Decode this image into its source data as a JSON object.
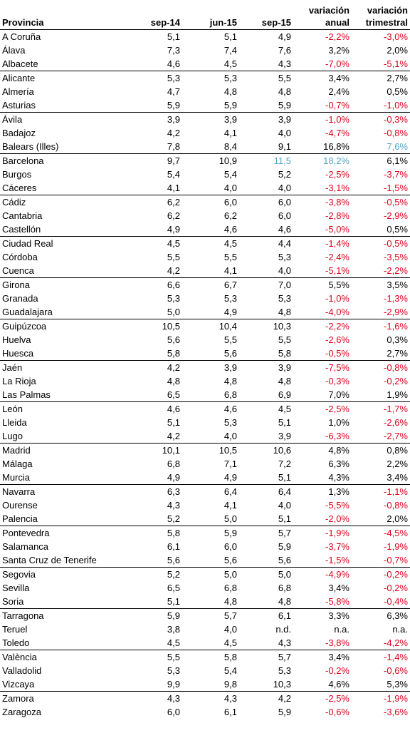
{
  "colors": {
    "negative": "#e0001b",
    "highlight": "#4fa6c8"
  },
  "table": {
    "headers": {
      "provincia": "Provincia",
      "sep14": "sep-14",
      "jun15": "jun-15",
      "sep15": "sep-15",
      "anual_l1": "variación",
      "anual_l2": "anual",
      "trim_l1": "variación",
      "trim_l2": "trimestral"
    },
    "rows": [
      [
        "A Coruña",
        "5,1",
        "5,1",
        "4,9",
        "-2,2%",
        "-3,0%"
      ],
      [
        "Álava",
        "7,3",
        "7,4",
        "7,6",
        "3,2%",
        "2,0%"
      ],
      [
        "Albacete",
        "4,6",
        "4,5",
        "4,3",
        "-7,0%",
        "-5,1%"
      ],
      [
        "Alicante",
        "5,3",
        "5,3",
        "5,5",
        "3,4%",
        "2,7%"
      ],
      [
        "Almería",
        "4,7",
        "4,8",
        "4,8",
        "2,4%",
        "0,5%"
      ],
      [
        "Asturias",
        "5,9",
        "5,9",
        "5,9",
        "-0,7%",
        "-1,0%"
      ],
      [
        "Ávila",
        "3,9",
        "3,9",
        "3,9",
        "-1,0%",
        "-0,3%"
      ],
      [
        "Badajoz",
        "4,2",
        "4,1",
        "4,0",
        "-4,7%",
        "-0,8%"
      ],
      [
        "Balears (Illes)",
        "7,8",
        "8,4",
        "9,1",
        "16,8%",
        "7,6%"
      ],
      [
        "Barcelona",
        "9,7",
        "10,9",
        "11,5",
        "18,2%",
        "6,1%"
      ],
      [
        "Burgos",
        "5,4",
        "5,4",
        "5,2",
        "-2,5%",
        "-3,7%"
      ],
      [
        "Cáceres",
        "4,1",
        "4,0",
        "4,0",
        "-3,1%",
        "-1,5%"
      ],
      [
        "Cádiz",
        "6,2",
        "6,0",
        "6,0",
        "-3,8%",
        "-0,5%"
      ],
      [
        "Cantabria",
        "6,2",
        "6,2",
        "6,0",
        "-2,8%",
        "-2,9%"
      ],
      [
        "Castellón",
        "4,9",
        "4,6",
        "4,6",
        "-5,0%",
        "0,5%"
      ],
      [
        "Ciudad Real",
        "4,5",
        "4,5",
        "4,4",
        "-1,4%",
        "-0,5%"
      ],
      [
        "Córdoba",
        "5,5",
        "5,5",
        "5,3",
        "-2,4%",
        "-3,5%"
      ],
      [
        "Cuenca",
        "4,2",
        "4,1",
        "4,0",
        "-5,1%",
        "-2,2%"
      ],
      [
        "Girona",
        "6,6",
        "6,7",
        "7,0",
        "5,5%",
        "3,5%"
      ],
      [
        "Granada",
        "5,3",
        "5,3",
        "5,3",
        "-1,0%",
        "-1,3%"
      ],
      [
        "Guadalajara",
        "5,0",
        "4,9",
        "4,8",
        "-4,0%",
        "-2,9%"
      ],
      [
        "Guipúzcoa",
        "10,5",
        "10,4",
        "10,3",
        "-2,2%",
        "-1,6%"
      ],
      [
        "Huelva",
        "5,6",
        "5,5",
        "5,5",
        "-2,6%",
        "0,3%"
      ],
      [
        "Huesca",
        "5,8",
        "5,6",
        "5,8",
        "-0,5%",
        "2,7%"
      ],
      [
        "Jaén",
        "4,2",
        "3,9",
        "3,9",
        "-7,5%",
        "-0,8%"
      ],
      [
        "La Rioja",
        "4,8",
        "4,8",
        "4,8",
        "-0,3%",
        "-0,2%"
      ],
      [
        "Las Palmas",
        "6,5",
        "6,8",
        "6,9",
        "7,0%",
        "1,9%"
      ],
      [
        "León",
        "4,6",
        "4,6",
        "4,5",
        "-2,5%",
        "-1,7%"
      ],
      [
        "Lleida",
        "5,1",
        "5,3",
        "5,1",
        "1,0%",
        "-2,6%"
      ],
      [
        "Lugo",
        "4,2",
        "4,0",
        "3,9",
        "-6,3%",
        "-2,7%"
      ],
      [
        "Madrid",
        "10,1",
        "10,5",
        "10,6",
        "4,8%",
        "0,8%"
      ],
      [
        "Málaga",
        "6,8",
        "7,1",
        "7,2",
        "6,3%",
        "2,2%"
      ],
      [
        "Murcia",
        "4,9",
        "4,9",
        "5,1",
        "4,3%",
        "3,4%"
      ],
      [
        "Navarra",
        "6,3",
        "6,4",
        "6,4",
        "1,3%",
        "-1,1%"
      ],
      [
        "Ourense",
        "4,3",
        "4,1",
        "4,0",
        "-5,5%",
        "-0,8%"
      ],
      [
        "Palencia",
        "5,2",
        "5,0",
        "5,1",
        "-2,0%",
        "2,0%"
      ],
      [
        "Pontevedra",
        "5,8",
        "5,9",
        "5,7",
        "-1,9%",
        "-4,5%"
      ],
      [
        "Salamanca",
        "6,1",
        "6,0",
        "5,9",
        "-3,7%",
        "-1,9%"
      ],
      [
        "Santa Cruz de Tenerife",
        "5,6",
        "5,6",
        "5,6",
        "-1,5%",
        "-0,7%"
      ],
      [
        "Segovia",
        "5,2",
        "5,0",
        "5,0",
        "-4,9%",
        "-0,2%"
      ],
      [
        "Sevilla",
        "6,5",
        "6,8",
        "6,8",
        "3,4%",
        "-0,2%"
      ],
      [
        "Soria",
        "5,1",
        "4,8",
        "4,8",
        "-5,8%",
        "-0,4%"
      ],
      [
        "Tarragona",
        "5,9",
        "5,7",
        "6,1",
        "3,3%",
        "6,3%"
      ],
      [
        "Teruel",
        "3,8",
        "4,0",
        "n.d.",
        "n.a.",
        "n.a."
      ],
      [
        "Toledo",
        "4,5",
        "4,5",
        "4,3",
        "-3,8%",
        "-4,2%"
      ],
      [
        "València",
        "5,5",
        "5,8",
        "5,7",
        "3,4%",
        "-1,4%"
      ],
      [
        "Valladolid",
        "5,3",
        "5,4",
        "5,3",
        "-0,2%",
        "-0,6%"
      ],
      [
        "Vizcaya",
        "9,9",
        "9,8",
        "10,3",
        "4,6%",
        "5,3%"
      ],
      [
        "Zamora",
        "4,3",
        "4,3",
        "4,2",
        "-2,5%",
        "-1,9%"
      ],
      [
        "Zaragoza",
        "6,0",
        "6,1",
        "5,9",
        "-0,6%",
        "-3,6%"
      ]
    ],
    "highlights": [
      {
        "province": "Balears (Illes)",
        "column": "variacion_trimestral"
      },
      {
        "province": "Barcelona",
        "column": "sep-15"
      },
      {
        "province": "Barcelona",
        "column": "variacion_anual"
      }
    ]
  }
}
